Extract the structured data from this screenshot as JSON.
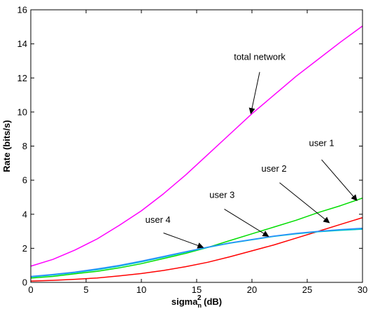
{
  "chart_data": {
    "type": "line",
    "title": "",
    "xlabel": {
      "base": "sigma",
      "sub": "n",
      "sup": "2",
      "unit": " (dB)"
    },
    "ylabel": "Rate (bits/s)",
    "xlim": [
      0,
      30
    ],
    "ylim": [
      0,
      16
    ],
    "xticks": [
      0,
      5,
      10,
      15,
      20,
      25,
      30
    ],
    "yticks": [
      0,
      2,
      4,
      6,
      8,
      10,
      12,
      14,
      16
    ],
    "grid": false,
    "legend": "none",
    "x": [
      0,
      2,
      4,
      6,
      8,
      10,
      12,
      14,
      16,
      18,
      20,
      22,
      24,
      26,
      28,
      30
    ],
    "series": [
      {
        "key": "total",
        "color": "#ff00ff",
        "values": [
          0.95,
          1.35,
          1.9,
          2.55,
          3.35,
          4.2,
          5.2,
          6.3,
          7.5,
          8.7,
          9.9,
          11.0,
          12.1,
          13.1,
          14.1,
          15.05
        ]
      },
      {
        "key": "u1",
        "color": "#00dd00",
        "values": [
          0.25,
          0.35,
          0.5,
          0.65,
          0.85,
          1.1,
          1.4,
          1.7,
          2.05,
          2.45,
          2.85,
          3.25,
          3.65,
          4.1,
          4.5,
          4.95
        ]
      },
      {
        "key": "u2",
        "color": "#ff0000",
        "values": [
          0.08,
          0.12,
          0.18,
          0.26,
          0.38,
          0.52,
          0.7,
          0.92,
          1.18,
          1.5,
          1.85,
          2.2,
          2.6,
          3.0,
          3.4,
          3.8
        ]
      },
      {
        "key": "u3",
        "color": "#00c8c8",
        "values": [
          0.32,
          0.43,
          0.57,
          0.74,
          0.95,
          1.2,
          1.48,
          1.77,
          2.05,
          2.3,
          2.5,
          2.7,
          2.85,
          2.97,
          3.05,
          3.12
        ]
      },
      {
        "key": "u4",
        "color": "#2a8cff",
        "values": [
          0.35,
          0.47,
          0.61,
          0.79,
          1.0,
          1.25,
          1.52,
          1.8,
          2.07,
          2.32,
          2.52,
          2.72,
          2.88,
          3.0,
          3.1,
          3.18
        ]
      }
    ],
    "annotations": [
      {
        "text": "total network",
        "label_at": [
          20.7,
          13.05
        ],
        "arrow_from": [
          20.7,
          12.35
        ],
        "arrow_to": [
          19.9,
          9.9
        ]
      },
      {
        "text": "user 1",
        "label_at": [
          26.3,
          8.0
        ],
        "arrow_from": [
          26.3,
          7.2
        ],
        "arrow_to": [
          29.5,
          4.8
        ]
      },
      {
        "text": "user 2",
        "label_at": [
          22.0,
          6.5
        ],
        "arrow_from": [
          22.5,
          5.85
        ],
        "arrow_to": [
          27.0,
          3.5
        ]
      },
      {
        "text": "user 3",
        "label_at": [
          17.3,
          4.95
        ],
        "arrow_from": [
          17.5,
          4.3
        ],
        "arrow_to": [
          21.5,
          2.7
        ]
      },
      {
        "text": "user 4",
        "label_at": [
          11.5,
          3.5
        ],
        "arrow_from": [
          12.0,
          2.9
        ],
        "arrow_to": [
          15.6,
          2.05
        ]
      }
    ]
  }
}
